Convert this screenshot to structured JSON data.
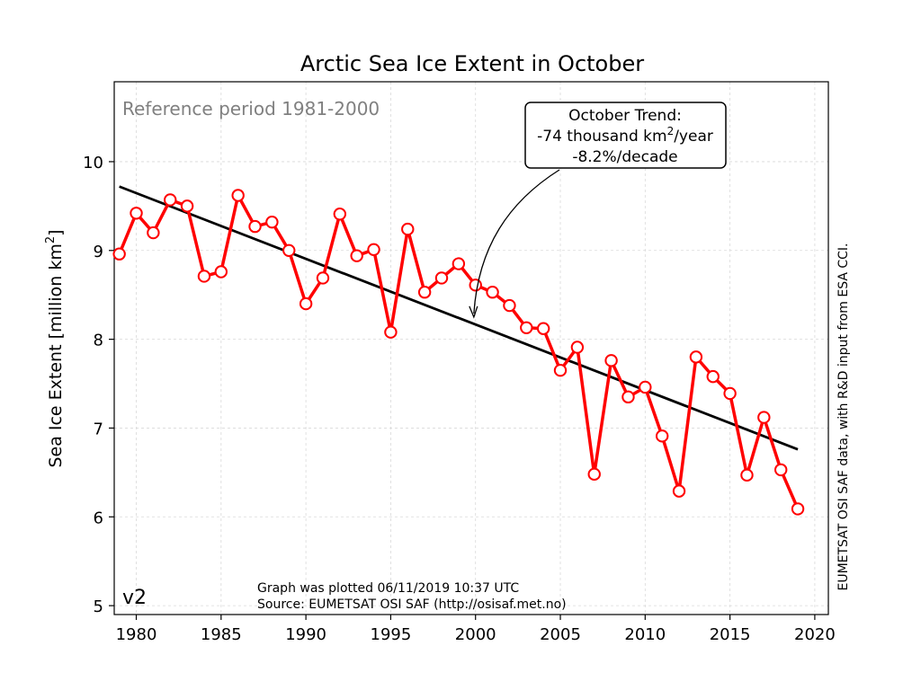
{
  "chart_data": {
    "type": "line",
    "title": "Arctic Sea Ice Extent in October",
    "ylabel": "Sea Ice Extent [million km²]",
    "xlabel": "",
    "xlim": [
      1978.7,
      2020.8
    ],
    "ylim": [
      4.9,
      10.9
    ],
    "x_ticks": [
      1980,
      1985,
      1990,
      1995,
      2000,
      2005,
      2010,
      2015,
      2020
    ],
    "y_ticks": [
      5,
      6,
      7,
      8,
      9,
      10
    ],
    "grid": true,
    "series": [
      {
        "color": "#ff0000",
        "marker": "open-circle",
        "x": [
          1979,
          1980,
          1981,
          1982,
          1983,
          1984,
          1985,
          1986,
          1987,
          1988,
          1989,
          1990,
          1991,
          1992,
          1993,
          1994,
          1995,
          1996,
          1997,
          1998,
          1999,
          2000,
          2001,
          2002,
          2003,
          2004,
          2005,
          2006,
          2007,
          2008,
          2009,
          2010,
          2011,
          2012,
          2013,
          2014,
          2015,
          2016,
          2017,
          2018,
          2019
        ],
        "values": [
          8.96,
          9.42,
          9.2,
          9.57,
          9.5,
          8.71,
          8.76,
          9.62,
          9.27,
          9.32,
          9.0,
          8.4,
          8.69,
          9.41,
          8.94,
          9.01,
          8.08,
          9.24,
          8.53,
          8.69,
          8.85,
          8.61,
          8.53,
          8.38,
          8.13,
          8.12,
          7.65,
          7.91,
          6.48,
          7.76,
          7.35,
          7.46,
          6.91,
          6.29,
          7.8,
          7.58,
          7.39,
          6.47,
          7.12,
          6.53,
          6.09
        ]
      }
    ],
    "trend_line": {
      "color": "#000000",
      "x": [
        1979,
        2019
      ],
      "values": [
        9.72,
        6.76
      ],
      "annotation_line1": "October Trend:",
      "annotation_line2_prefix": "-74 thousand km",
      "annotation_line2_sup": "2",
      "annotation_line2_suffix": "/year",
      "annotation_line3": "-8.2%/decade",
      "arrow_target": [
        1999.9,
        8.25
      ]
    },
    "annotations": {
      "reference_period": "Reference period 1981-2000",
      "version": "v2",
      "plotted_line": "Graph was plotted 06/11/2019 10:37 UTC",
      "source_line": "Source: EUMETSAT OSI SAF (http://osisaf.met.no)",
      "side_note": "EUMETSAT OSI SAF data, with R&D input from ESA CCI."
    }
  }
}
